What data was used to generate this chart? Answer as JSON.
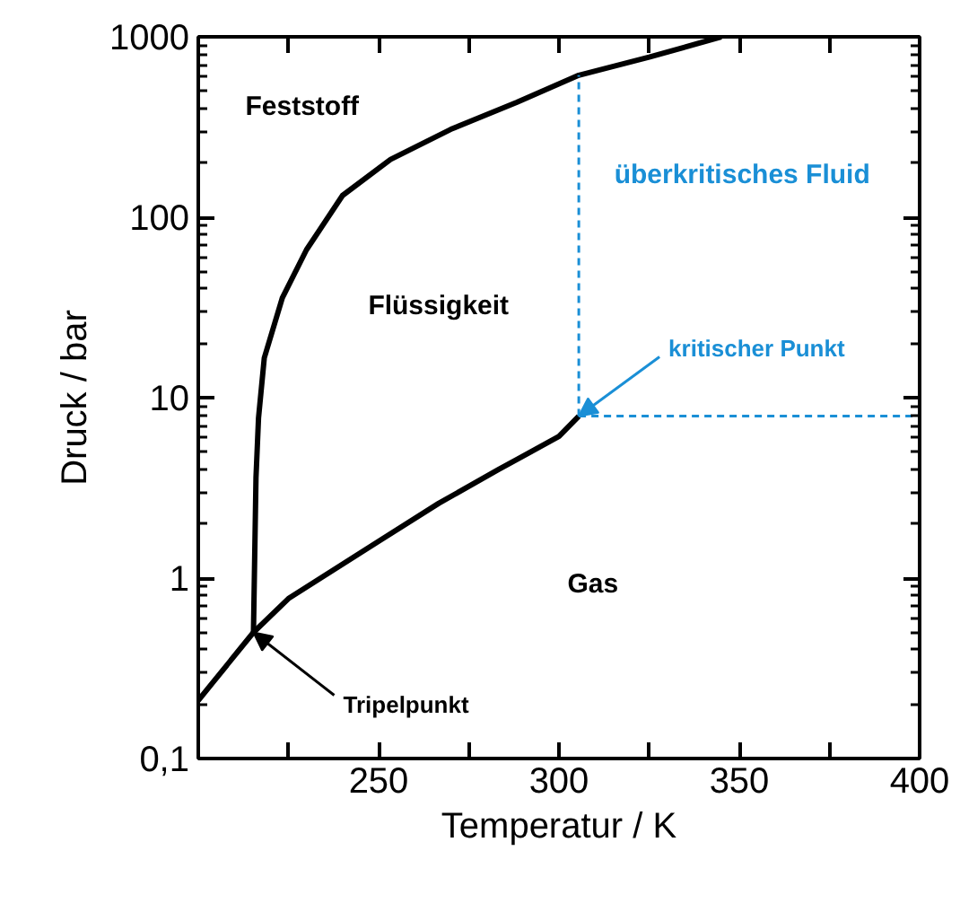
{
  "chart_data": {
    "type": "line",
    "xlabel": "Temperatur / K",
    "ylabel": "Druck / bar",
    "log": "y",
    "grid": false,
    "marker": "none",
    "xlim": [
      200,
      400
    ],
    "xticks": [
      {
        "value": 225,
        "label": null
      },
      250,
      {
        "value": 275,
        "label": null
      },
      300,
      {
        "value": 325,
        "label": null
      },
      350,
      {
        "value": 375,
        "label": null
      },
      400
    ],
    "ylim": [
      0.1,
      1000
    ],
    "yticks": [
      {
        "value": 0.1,
        "label": "0,1"
      },
      1,
      10,
      100,
      1000
    ],
    "series": [
      {
        "color": "#000000",
        "line_style": "solid",
        "x": [
          200,
          215.3,
          225,
          250,
          266.7,
          283.3,
          300,
          305.5
        ],
        "values": [
          0.21,
          0.5,
          0.77,
          1.6,
          2.6,
          4.0,
          6.1,
          7.9
        ]
      },
      {
        "color": "#000000",
        "line_style": "solid",
        "x": [
          215.3,
          216,
          216.7,
          218.3,
          223.3,
          230,
          240,
          253.3,
          270,
          288.3,
          305.5,
          325,
          345
        ],
        "values": [
          0.5,
          3.6,
          7.7,
          16.6,
          35.7,
          66,
          132,
          209,
          307,
          433,
          612,
          771,
          1000
        ]
      },
      {
        "color": "#1a8fd6",
        "line_style": "dashed",
        "x": [
          305.5,
          305.5
        ],
        "values": [
          7.9,
          612
        ]
      },
      {
        "color": "#1a8fd6",
        "line_style": "dashed",
        "x": [
          305.5,
          400
        ],
        "values": [
          7.9,
          7.9
        ]
      }
    ],
    "annotations": [
      "Feststoff",
      "Flüssigkeit",
      "überkritisches Fluid",
      "Gas",
      {
        "text": "Tripelpunkt",
        "x": 215.3,
        "y": 0.5
      },
      {
        "text": "kritischer Punkt",
        "x": 305.5,
        "y": 7.9
      }
    ]
  }
}
